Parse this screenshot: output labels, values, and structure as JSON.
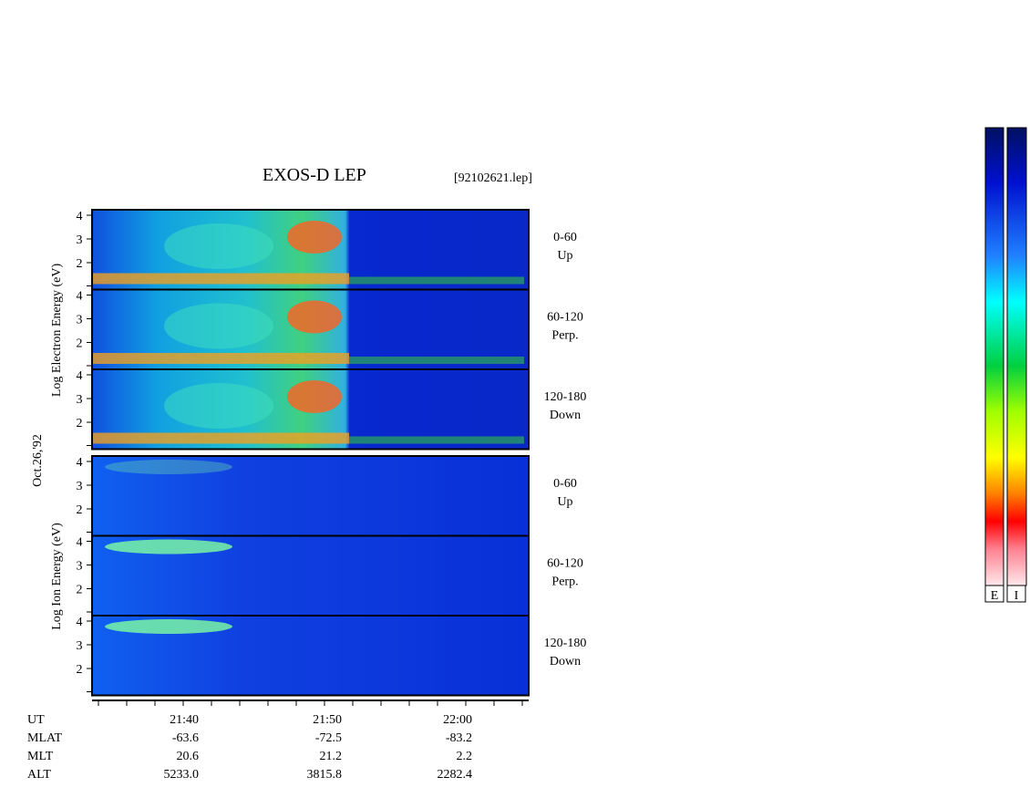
{
  "title": "EXOS-D LEP",
  "file": "[92102621.lep]",
  "date": "Oct.26,'92",
  "electron": {
    "axis_label": "Log  Electron  Energy (eV)",
    "panels": [
      {
        "angle": "0-60",
        "direction": "Up",
        "ticks": [
          4,
          3,
          2
        ]
      },
      {
        "angle": "60-120",
        "direction": "Perp.",
        "ticks": [
          4,
          3,
          2
        ]
      },
      {
        "angle": "120-180",
        "direction": "Down",
        "ticks": [
          4,
          3,
          2
        ]
      }
    ]
  },
  "ion": {
    "axis_label": "Log  Ion  Energy (eV)",
    "panels": [
      {
        "angle": "0-60",
        "direction": "Up",
        "ticks": [
          4,
          3,
          2
        ]
      },
      {
        "angle": "60-120",
        "direction": "Perp.",
        "ticks": [
          4,
          3,
          2
        ]
      },
      {
        "angle": "120-180",
        "direction": "Down",
        "ticks": [
          4,
          3,
          2
        ]
      }
    ]
  },
  "time_axis": {
    "rows": [
      {
        "name": "UT",
        "values": [
          "21:40",
          "21:50",
          "22:00"
        ]
      },
      {
        "name": "MLAT",
        "values": [
          "-63.6",
          "-72.5",
          "-83.2"
        ]
      },
      {
        "name": "MLT",
        "values": [
          "20.6",
          "21.2",
          "2.2"
        ]
      },
      {
        "name": "ALT",
        "values": [
          "5233.0",
          "3815.8",
          "2282.4"
        ]
      }
    ]
  },
  "colorbars": [
    "E",
    "I"
  ]
}
